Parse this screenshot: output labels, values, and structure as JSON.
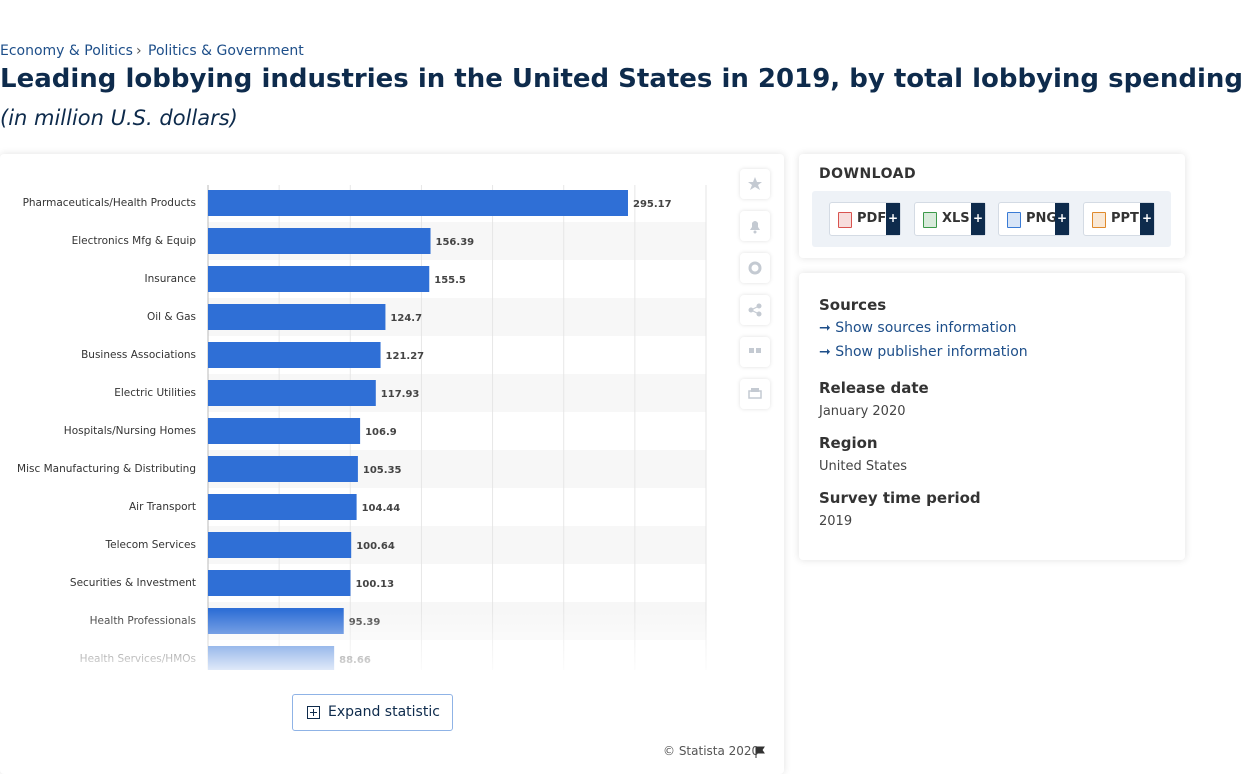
{
  "breadcrumbs": [
    "Economy & Politics",
    "Politics & Government"
  ],
  "chart_data": {
    "type": "bar",
    "orientation": "horizontal",
    "title": "Leading lobbying industries in the United States in 2019, by total lobbying spending",
    "subtitle": "(in million U.S. dollars)",
    "categories": [
      "Pharmaceuticals/Health Products",
      "Electronics Mfg & Equip",
      "Insurance",
      "Oil & Gas",
      "Business Associations",
      "Electric Utilities",
      "Hospitals/Nursing Homes",
      "Misc Manufacturing & Distributing",
      "Air Transport",
      "Telecom Services",
      "Securities & Investment",
      "Health Professionals",
      "Health Services/HMOs"
    ],
    "values": [
      295.17,
      156.39,
      155.5,
      124.7,
      121.27,
      117.93,
      106.9,
      105.35,
      104.44,
      100.64,
      100.13,
      95.39,
      88.66
    ],
    "color": "#2f6fd6",
    "xlim": [
      0,
      350
    ],
    "xticks": [
      0,
      50,
      100,
      150,
      200,
      250,
      300,
      350
    ],
    "grid": true
  },
  "expand_button": "Expand statistic",
  "copyright": "© Statista 2020",
  "download": {
    "heading": "DOWNLOAD",
    "formats": [
      "PDF",
      "XLS",
      "PNG",
      "PPT"
    ],
    "plus": "+"
  },
  "details": {
    "sources_heading": "Sources",
    "links": [
      "Show sources information",
      "Show publisher information"
    ],
    "fields": [
      {
        "label": "Release date",
        "value": "January 2020"
      },
      {
        "label": "Region",
        "value": "United States"
      },
      {
        "label": "Survey time period",
        "value": "2019"
      }
    ]
  }
}
